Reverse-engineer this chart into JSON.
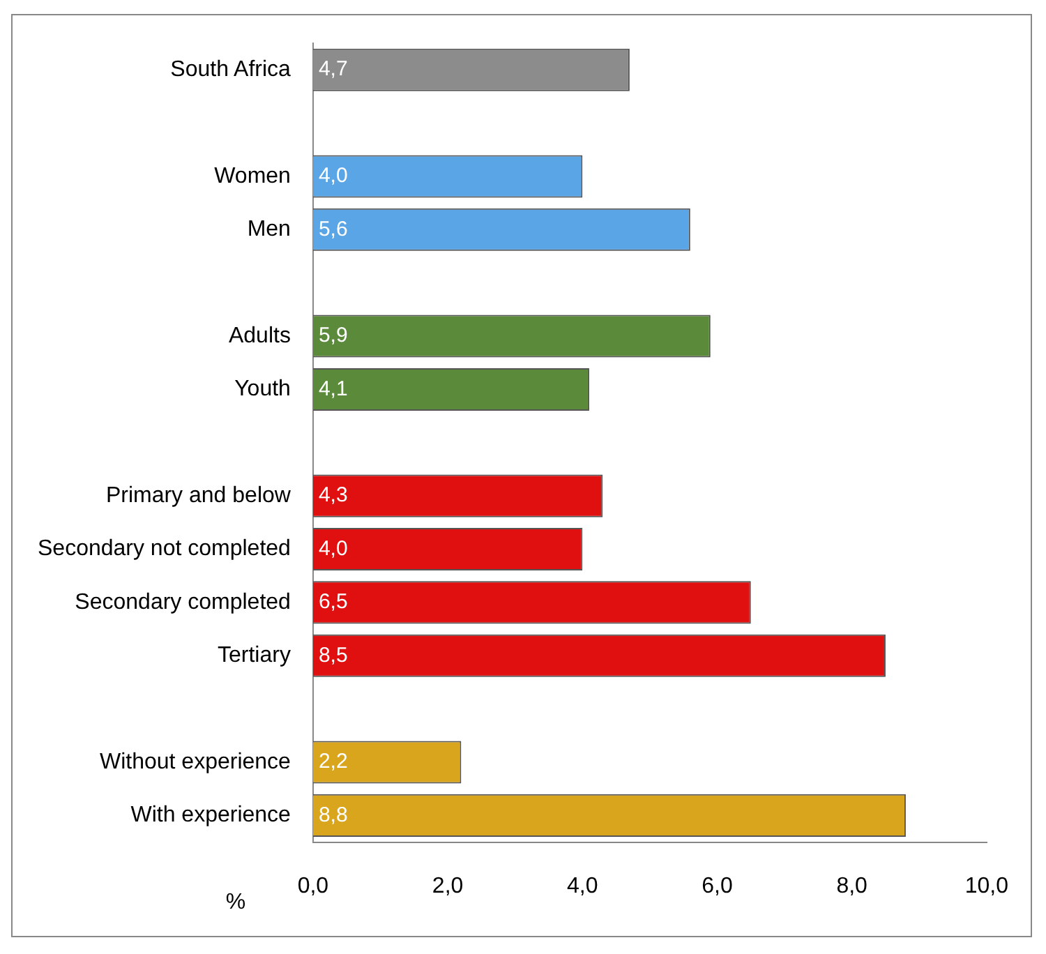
{
  "chart_data": {
    "type": "bar",
    "orientation": "horizontal",
    "xlabel": "%",
    "categories": [
      "South Africa",
      null,
      "Women",
      "Men",
      null,
      "Adults",
      "Youth",
      null,
      "Primary and below",
      "Secondary not completed",
      "Secondary completed",
      "Tertiary",
      null,
      "Without experience",
      "With experience"
    ],
    "values": [
      4.7,
      null,
      4.0,
      5.6,
      null,
      5.9,
      4.1,
      null,
      4.3,
      4.0,
      6.5,
      8.5,
      null,
      2.2,
      8.8
    ],
    "value_labels": [
      "4,7",
      null,
      "4,0",
      "5,6",
      null,
      "5,9",
      "4,1",
      null,
      "4,3",
      "4,0",
      "6,5",
      "8,5",
      null,
      "2,2",
      "8,8"
    ],
    "colors": [
      "#8c8c8c",
      "#8c8c8c",
      "#5aa5e6",
      "#5aa5e6",
      "#5aa5e6",
      "#5a8a3a",
      "#5a8a3a",
      "#5a8a3a",
      "#e01010",
      "#e01010",
      "#e01010",
      "#e01010",
      "#e01010",
      "#d9a51c",
      "#d9a51c"
    ],
    "xlim": [
      0,
      10
    ],
    "xticks": [
      {
        "value": 0,
        "label": "0,0"
      },
      {
        "value": 2,
        "label": "2,0"
      },
      {
        "value": 4,
        "label": "4,0"
      },
      {
        "value": 6,
        "label": "6,0"
      },
      {
        "value": 8,
        "label": "8,0"
      },
      {
        "value": 10,
        "label": "10,0"
      }
    ],
    "grid": false,
    "legend": false
  }
}
